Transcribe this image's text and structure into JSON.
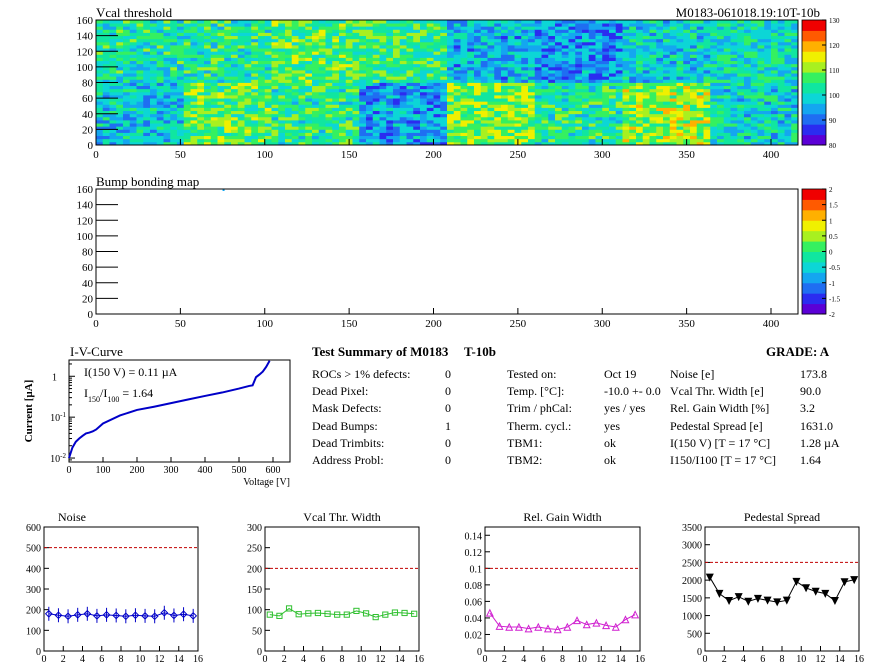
{
  "header": {
    "vcal_title": "Vcal threshold",
    "module_id": "M0183-061018.19:10T-10b",
    "bump_title": "Bump bonding map"
  },
  "heatmap_palette": [
    "#5b00d6",
    "#2b2cf0",
    "#1f6ef2",
    "#14a6f0",
    "#0cd6d6",
    "#10e6a0",
    "#35f060",
    "#a8f020",
    "#f0f000",
    "#ffb000",
    "#ff5a00",
    "#f00000"
  ],
  "iv": {
    "title": "I-V-Curve",
    "line1": "I(150 V) = 0.11 µA",
    "line2_main": "I",
    "line2_sub1": "150",
    "line2_mid": "/I",
    "line2_sub2": "100",
    "line2_tail": " =  1.64",
    "ylabel": "Current [µA]",
    "xlabel": "Voltage [V]"
  },
  "summary": {
    "title": "Test Summary of M0183",
    "config": "T-10b",
    "grade_label": "GRADE:  A",
    "left": [
      {
        "label": "ROCs > 1% defects:",
        "value": "0"
      },
      {
        "label": "Dead Pixel:",
        "value": "0"
      },
      {
        "label": "Mask Defects:",
        "value": "0"
      },
      {
        "label": "Dead Bumps:",
        "value": "1"
      },
      {
        "label": "Dead Trimbits:",
        "value": "0"
      },
      {
        "label": "Address Probl:",
        "value": "0"
      }
    ],
    "middle": [
      {
        "label": "Tested on:",
        "value": "Oct 19"
      },
      {
        "label": "Temp. [°C]:",
        "value": "-10.0 +- 0.0"
      },
      {
        "label": "Trim / phCal:",
        "value": "yes / yes"
      },
      {
        "label": "Therm. cycl.:",
        "value": "yes"
      },
      {
        "label": "TBM1:",
        "value": "ok"
      },
      {
        "label": "TBM2:",
        "value": "ok"
      }
    ],
    "right": [
      {
        "label": "Noise [e]",
        "value": "173.8"
      },
      {
        "label": "Vcal Thr. Width [e]",
        "value": "90.0"
      },
      {
        "label": "Rel. Gain Width [%]",
        "value": "3.2"
      },
      {
        "label": "Pedestal Spread [e]",
        "value": "1631.0"
      },
      {
        "label": "I(150 V) [T = 17 °C]",
        "value": "1.28 µA"
      },
      {
        "label": "I150/I100 [T = 17 °C]",
        "value": "1.64"
      }
    ]
  },
  "chart_data": [
    {
      "type": "heatmap",
      "title": "Vcal threshold",
      "xlim": [
        0,
        416
      ],
      "ylim": [
        0,
        160
      ],
      "xticks": [
        0,
        50,
        100,
        150,
        200,
        250,
        300,
        350,
        400
      ],
      "yticks": [
        0,
        20,
        40,
        60,
        80,
        100,
        120,
        140,
        160
      ],
      "zlim": [
        80,
        130
      ],
      "zticks": [
        80,
        90,
        100,
        110,
        120,
        130
      ],
      "roc_means_top": [
        102,
        103,
        107,
        105,
        96,
        93,
        99,
        101
      ],
      "roc_means_bottom": [
        98,
        107,
        104,
        94,
        109,
        103,
        111,
        100
      ]
    },
    {
      "type": "heatmap",
      "title": "Bump bonding map",
      "xlim": [
        0,
        416
      ],
      "ylim": [
        0,
        160
      ],
      "xticks": [
        0,
        50,
        100,
        150,
        200,
        250,
        300,
        350,
        400
      ],
      "yticks": [
        0,
        20,
        40,
        60,
        80,
        100,
        120,
        140,
        160
      ],
      "zlim": [
        -2,
        2
      ],
      "zticks": [
        -2,
        -1.5,
        -1,
        -0.5,
        0,
        0.5,
        1,
        1.5,
        2
      ],
      "dead_bumps": [
        [
          75,
          160
        ]
      ]
    },
    {
      "type": "line",
      "title": "I-V-Curve",
      "xlabel": "Voltage [V]",
      "ylabel": "Current [µA]",
      "xlim": [
        0,
        650
      ],
      "ylim": [
        0.008,
        2.5
      ],
      "yscale": "log",
      "xticks": [
        0,
        100,
        200,
        300,
        400,
        500,
        600
      ],
      "points": [
        [
          0,
          0.01
        ],
        [
          10,
          0.018
        ],
        [
          20,
          0.025
        ],
        [
          30,
          0.03
        ],
        [
          40,
          0.035
        ],
        [
          50,
          0.04
        ],
        [
          60,
          0.042
        ],
        [
          70,
          0.045
        ],
        [
          80,
          0.05
        ],
        [
          100,
          0.07
        ],
        [
          150,
          0.11
        ],
        [
          200,
          0.15
        ],
        [
          250,
          0.18
        ],
        [
          300,
          0.22
        ],
        [
          350,
          0.27
        ],
        [
          400,
          0.33
        ],
        [
          450,
          0.4
        ],
        [
          500,
          0.5
        ],
        [
          530,
          0.58
        ],
        [
          540,
          0.6
        ],
        [
          550,
          0.95
        ],
        [
          560,
          1.1
        ],
        [
          570,
          1.3
        ],
        [
          580,
          1.7
        ],
        [
          590,
          2.4
        ]
      ]
    },
    {
      "type": "line",
      "title": "Noise",
      "xlim": [
        0,
        16
      ],
      "ylim": [
        0,
        600
      ],
      "xticks": [
        0,
        2,
        4,
        6,
        8,
        10,
        12,
        14,
        16
      ],
      "yticks": [
        0,
        100,
        200,
        300,
        400,
        500,
        600
      ],
      "limit": 500,
      "x": [
        0.5,
        1.5,
        2.5,
        3.5,
        4.5,
        5.5,
        6.5,
        7.5,
        8.5,
        9.5,
        10.5,
        11.5,
        12.5,
        13.5,
        14.5,
        15.5
      ],
      "values": [
        180,
        173,
        168,
        175,
        180,
        170,
        175,
        172,
        168,
        173,
        170,
        168,
        185,
        172,
        178,
        170
      ],
      "color": "#0000c8",
      "marker": "diamond"
    },
    {
      "type": "line",
      "title": "Vcal Thr. Width",
      "xlim": [
        0,
        16
      ],
      "ylim": [
        0,
        300
      ],
      "xticks": [
        0,
        2,
        4,
        6,
        8,
        10,
        12,
        14,
        16
      ],
      "yticks": [
        0,
        50,
        100,
        150,
        200,
        250,
        300
      ],
      "limit": 200,
      "x": [
        0.5,
        1.5,
        2.5,
        3.5,
        4.5,
        5.5,
        6.5,
        7.5,
        8.5,
        9.5,
        10.5,
        11.5,
        12.5,
        13.5,
        14.5,
        15.5
      ],
      "values": [
        88,
        85,
        103,
        89,
        91,
        92,
        90,
        88,
        88,
        97,
        91,
        82,
        88,
        93,
        92,
        90
      ],
      "color": "#30c030",
      "marker": "square"
    },
    {
      "type": "line",
      "title": "Rel. Gain Width",
      "xlim": [
        0,
        16
      ],
      "ylim": [
        0,
        0.15
      ],
      "xticks": [
        0,
        2,
        4,
        6,
        8,
        10,
        12,
        14,
        16
      ],
      "yticks": [
        0,
        0.02,
        0.04,
        0.06,
        0.08,
        0.1,
        0.12,
        0.14
      ],
      "limit": 0.1,
      "x": [
        0.5,
        1.5,
        2.5,
        3.5,
        4.5,
        5.5,
        6.5,
        7.5,
        8.5,
        9.5,
        10.5,
        11.5,
        12.5,
        13.5,
        14.5,
        15.5
      ],
      "values": [
        0.046,
        0.03,
        0.029,
        0.029,
        0.027,
        0.029,
        0.027,
        0.026,
        0.029,
        0.037,
        0.032,
        0.034,
        0.031,
        0.029,
        0.038,
        0.044
      ],
      "color": "#d020d0",
      "marker": "triangle-up"
    },
    {
      "type": "line",
      "title": "Pedestal Spread",
      "xlim": [
        0,
        16
      ],
      "ylim": [
        0,
        3500
      ],
      "xticks": [
        0,
        2,
        4,
        6,
        8,
        10,
        12,
        14,
        16
      ],
      "yticks": [
        0,
        500,
        1000,
        1500,
        2000,
        2500,
        3000,
        3500
      ],
      "limit": 2500,
      "x": [
        0.5,
        1.5,
        2.5,
        3.5,
        4.5,
        5.5,
        6.5,
        7.5,
        8.5,
        9.5,
        10.5,
        11.5,
        12.5,
        13.5,
        14.5,
        15.5
      ],
      "values": [
        2080,
        1620,
        1420,
        1530,
        1400,
        1480,
        1430,
        1380,
        1430,
        1960,
        1780,
        1680,
        1620,
        1420,
        1950,
        2010
      ],
      "color": "#000000",
      "marker": "triangle-down"
    }
  ]
}
